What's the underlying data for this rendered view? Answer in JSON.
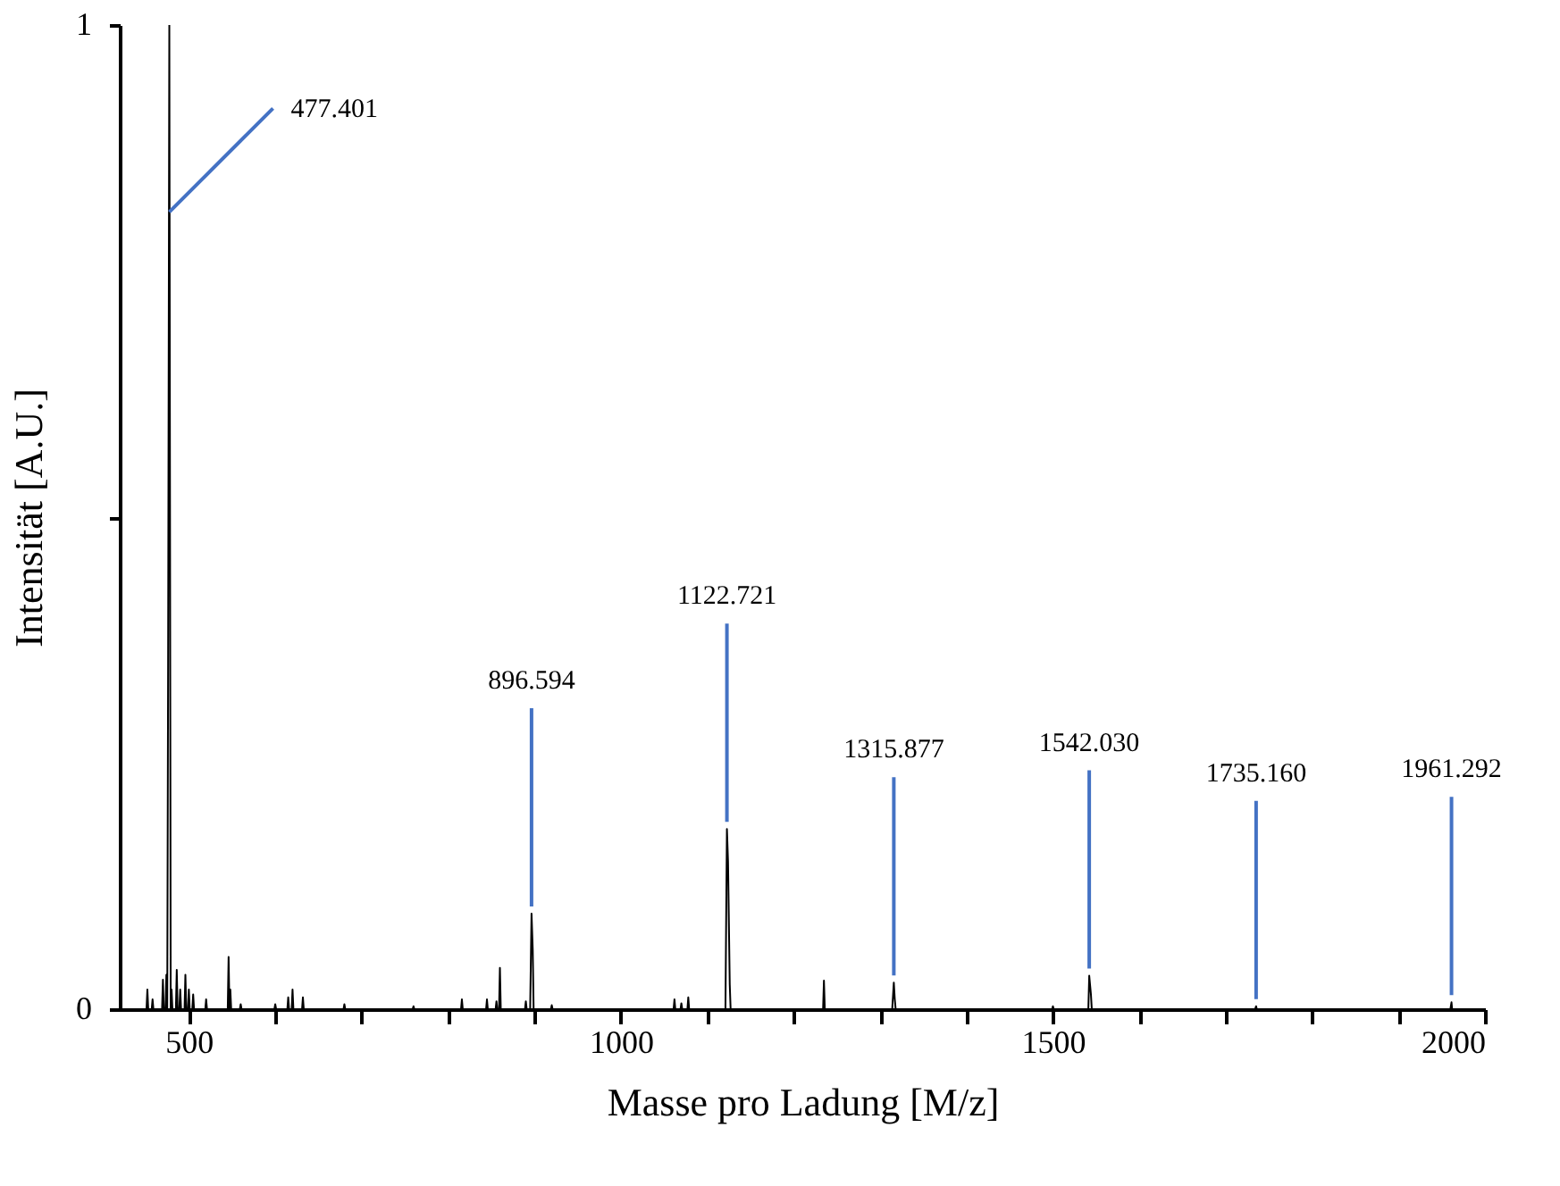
{
  "chart_data": {
    "type": "line",
    "xlabel": "Masse pro Ladung [M/z]",
    "ylabel": "Intensität [A.U.]",
    "x": [
      420,
      451,
      452,
      453,
      457,
      458,
      459,
      469,
      470,
      471,
      473,
      474,
      475,
      476,
      477.401,
      479,
      480,
      481,
      485,
      486,
      487,
      489,
      490,
      491,
      495,
      496,
      497,
      499,
      500,
      501,
      504,
      505,
      506,
      519,
      520,
      521,
      545,
      546,
      547,
      548,
      549,
      559,
      560,
      561,
      599,
      600,
      601,
      614,
      615,
      616,
      619,
      620,
      621,
      631,
      632,
      633,
      679,
      680,
      681,
      759,
      760,
      761,
      815,
      816,
      817,
      844,
      845,
      846,
      855,
      856,
      857,
      859,
      860,
      861,
      889,
      890,
      891,
      895,
      896.594,
      898,
      899,
      919,
      920,
      921,
      1061,
      1062,
      1063,
      1069,
      1070,
      1071,
      1077,
      1078,
      1079,
      1121,
      1122.721,
      1124,
      1126,
      1127,
      1234,
      1235,
      1236,
      1314,
      1315.877,
      1317,
      1318,
      1499,
      1500,
      1501,
      1541,
      1542.03,
      1544,
      1545,
      1734,
      1735.16,
      1736,
      1960,
      1961.292,
      1962,
      2000
    ],
    "values": [
      0,
      0,
      0.02,
      0,
      0,
      0.01,
      0,
      0,
      0.03,
      0,
      0,
      0.035,
      0,
      0.35,
      1.0,
      0,
      0.02,
      0,
      0,
      0.04,
      0,
      0,
      0.02,
      0,
      0,
      0.035,
      0,
      0,
      0.02,
      0,
      0,
      0.015,
      0,
      0,
      0.01,
      0,
      0,
      0.053,
      0,
      0.02,
      0,
      0,
      0.005,
      0,
      0,
      0.005,
      0,
      0,
      0.012,
      0,
      0,
      0.02,
      0,
      0,
      0.012,
      0,
      0,
      0.005,
      0,
      0,
      0.003,
      0,
      0,
      0.01,
      0,
      0,
      0.01,
      0,
      0,
      0.008,
      0,
      0,
      0.042,
      0,
      0,
      0.008,
      0,
      0,
      0.097,
      0.06,
      0,
      0,
      0.004,
      0,
      0,
      0.01,
      0,
      0,
      0.006,
      0,
      0,
      0.012,
      0,
      0,
      0.183,
      0.15,
      0.025,
      0,
      0,
      0.029,
      0,
      0,
      0.027,
      0.01,
      0,
      0,
      0.003,
      0,
      0,
      0.034,
      0.015,
      0,
      0,
      0.003,
      0,
      0,
      0.007,
      0,
      0
    ],
    "color": "#000000",
    "xlim": [
      420,
      2000
    ],
    "xticks": [
      {
        "value": 500,
        "label": "500"
      },
      {
        "value": 600,
        "label": null
      },
      {
        "value": 700,
        "label": null
      },
      {
        "value": 800,
        "label": null
      },
      {
        "value": 900,
        "label": null
      },
      {
        "value": 1000,
        "label": "1000"
      },
      {
        "value": 1100,
        "label": null
      },
      {
        "value": 1200,
        "label": null
      },
      {
        "value": 1300,
        "label": null
      },
      {
        "value": 1400,
        "label": null
      },
      {
        "value": 1500,
        "label": "1500"
      },
      {
        "value": 1600,
        "label": null
      },
      {
        "value": 1700,
        "label": null
      },
      {
        "value": 1800,
        "label": null
      },
      {
        "value": 1900,
        "label": null
      },
      {
        "value": 2000,
        "label": "2000"
      }
    ],
    "ylim": [
      0,
      1
    ],
    "yticks": [
      0,
      {
        "value": 0.5,
        "label": null
      },
      1
    ],
    "grid": false,
    "marker": "none",
    "line_style": "solid",
    "annotations": [
      {
        "text": "477.401",
        "x": 477.401,
        "y": 0.81
      },
      {
        "text": "896.594",
        "x": 896.594,
        "y": 0.097
      },
      {
        "text": "1122.721",
        "x": 1122.721,
        "y": 0.183
      },
      {
        "text": "1315.877",
        "x": 1315.877,
        "y": 0.027
      },
      {
        "text": "1542.030",
        "x": 1542.03,
        "y": 0.034
      },
      {
        "text": "1735.160",
        "x": 1735.16,
        "y": 0.003
      },
      {
        "text": "1961.292",
        "x": 1961.292,
        "y": 0.007
      }
    ]
  }
}
